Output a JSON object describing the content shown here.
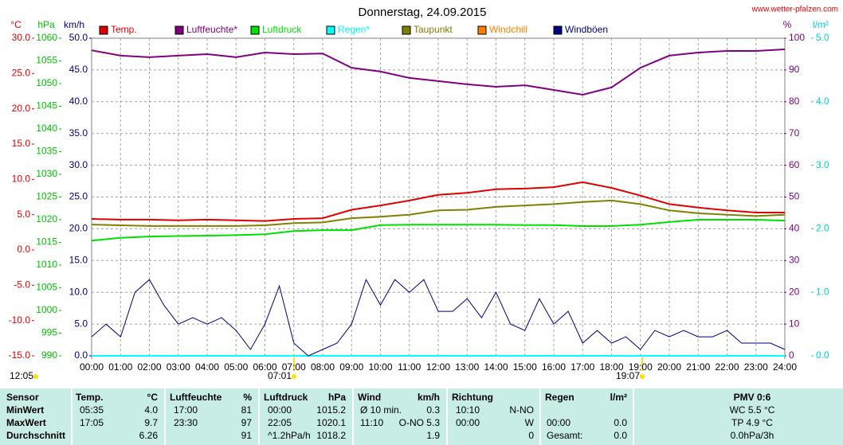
{
  "chart_data": {
    "type": "line",
    "title": "Donnerstag, 24.09.2015",
    "source": "www.wetter-pfalzen.com",
    "annotations": {
      "updated": "12:05",
      "sunrise": "07:01",
      "sunset": "19:07"
    },
    "xlim": [
      0,
      24
    ],
    "xticks": [
      {
        "value": 0,
        "label": "00:00"
      },
      {
        "value": 1,
        "label": "01:00"
      },
      {
        "value": 2,
        "label": "02:00"
      },
      {
        "value": 3,
        "label": "03:00"
      },
      {
        "value": 4,
        "label": "04:00"
      },
      {
        "value": 5,
        "label": "05:00"
      },
      {
        "value": 6,
        "label": "06:00"
      },
      {
        "value": 7,
        "label": "07:00"
      },
      {
        "value": 8,
        "label": "08:00"
      },
      {
        "value": 9,
        "label": "09:00"
      },
      {
        "value": 10,
        "label": "10:00"
      },
      {
        "value": 11,
        "label": "11:00"
      },
      {
        "value": 12,
        "label": "12:00"
      },
      {
        "value": 13,
        "label": "13:00"
      },
      {
        "value": 14,
        "label": "14:00"
      },
      {
        "value": 15,
        "label": "15:00"
      },
      {
        "value": 16,
        "label": "16:00"
      },
      {
        "value": 17,
        "label": "17:00"
      },
      {
        "value": 18,
        "label": "18:00"
      },
      {
        "value": 19,
        "label": "19:00"
      },
      {
        "value": 20,
        "label": "20:00"
      },
      {
        "value": 21,
        "label": "21:00"
      },
      {
        "value": 22,
        "label": "22:00"
      },
      {
        "value": 23,
        "label": "23:00"
      },
      {
        "value": 24,
        "label": "24:00"
      }
    ],
    "grid": true,
    "axes": {
      "temp": {
        "label": "°C",
        "color": "#e00000",
        "lim": [
          -15,
          30
        ],
        "ticks": [
          {
            "value": -15,
            "label": "-15.0"
          },
          {
            "value": -10,
            "label": "-10.0"
          },
          {
            "value": -5,
            "label": "-5.0"
          },
          {
            "value": 0,
            "label": "0.0"
          },
          {
            "value": 5,
            "label": "5.0"
          },
          {
            "value": 10,
            "label": "10.0"
          },
          {
            "value": 15,
            "label": "15.0"
          },
          {
            "value": 20,
            "label": "20.0"
          },
          {
            "value": 25,
            "label": "25.0"
          },
          {
            "value": 30,
            "label": "30.0"
          }
        ]
      },
      "pressure": {
        "label": "hPa",
        "color": "#00c000",
        "lim": [
          990,
          1060
        ],
        "ticks": [
          990,
          995,
          1000,
          1005,
          1010,
          1015,
          1020,
          1025,
          1030,
          1035,
          1040,
          1045,
          1050,
          1055,
          1060
        ]
      },
      "wind": {
        "label": "km/h",
        "color": "#000080",
        "lim": [
          0,
          50
        ],
        "ticks": [
          {
            "value": 0,
            "label": "0.0"
          },
          {
            "value": 5,
            "label": "5.0"
          },
          {
            "value": 10,
            "label": "10.0"
          },
          {
            "value": 15,
            "label": "15.0"
          },
          {
            "value": 20,
            "label": "20.0"
          },
          {
            "value": 25,
            "label": "25.0"
          },
          {
            "value": 30,
            "label": "30.0"
          },
          {
            "value": 35,
            "label": "35.0"
          },
          {
            "value": 40,
            "label": "40.0"
          },
          {
            "value": 45,
            "label": "45.0"
          },
          {
            "value": 50,
            "label": "50.0"
          }
        ]
      },
      "humidity": {
        "label": "%",
        "color": "#800080",
        "lim": [
          0,
          100
        ],
        "ticks": [
          0,
          10,
          20,
          30,
          40,
          50,
          60,
          70,
          80,
          90,
          100
        ]
      },
      "rain": {
        "label": "l/m²",
        "color": "#00d0d0",
        "lim": [
          0,
          5
        ],
        "ticks": [
          {
            "value": 0,
            "label": "0.0"
          },
          {
            "value": 1,
            "label": "1.0"
          },
          {
            "value": 2,
            "label": "2.0"
          },
          {
            "value": 3,
            "label": "3.0"
          },
          {
            "value": 4,
            "label": "4.0"
          },
          {
            "value": 5,
            "label": "5.0"
          }
        ]
      }
    },
    "series": [
      {
        "name": "Temp.",
        "color": "#e00000",
        "axis": "temp",
        "x": [
          0,
          1,
          2,
          3,
          4,
          5,
          6,
          7,
          8,
          9,
          10,
          11,
          12,
          13,
          14,
          15,
          16,
          17,
          18,
          19,
          20,
          21,
          22,
          23,
          24
        ],
        "values": [
          4.4,
          4.3,
          4.3,
          4.2,
          4.3,
          4.2,
          4.1,
          4.4,
          4.5,
          5.7,
          6.3,
          7.0,
          7.8,
          8.1,
          8.6,
          8.7,
          8.9,
          9.6,
          8.8,
          7.7,
          6.5,
          6.0,
          5.6,
          5.3,
          5.3
        ]
      },
      {
        "name": "Luftfeuchte*",
        "color": "#800080",
        "axis": "humidity",
        "x": [
          0,
          1,
          2,
          3,
          4,
          5,
          6,
          7,
          8,
          9,
          10,
          11,
          12,
          13,
          14,
          15,
          16,
          17,
          18,
          19,
          20,
          21,
          22,
          23,
          24
        ],
        "values": [
          96.2,
          94.5,
          94,
          94.5,
          95,
          94,
          95.5,
          95,
          95.2,
          90.7,
          89.5,
          87.5,
          86.5,
          85.5,
          84.7,
          85.2,
          83.7,
          82.2,
          84.5,
          90.7,
          94.5,
          95.5,
          96,
          96,
          96.5
        ]
      },
      {
        "name": "Luftdruck",
        "color": "#00e000",
        "axis": "pressure",
        "x": [
          0,
          1,
          2,
          3,
          4,
          5,
          6,
          7,
          8,
          9,
          10,
          11,
          12,
          13,
          14,
          15,
          16,
          17,
          18,
          19,
          20,
          21,
          22,
          23,
          24
        ],
        "values": [
          1015.4,
          1016,
          1016.3,
          1016.4,
          1016.5,
          1016.6,
          1016.8,
          1017.5,
          1017.7,
          1017.7,
          1018.8,
          1018.9,
          1018.9,
          1018.9,
          1018.9,
          1018.8,
          1018.8,
          1018.6,
          1018.6,
          1018.9,
          1019.5,
          1020,
          1020,
          1020,
          1019.8
        ]
      },
      {
        "name": "Regen*",
        "color": "#00ffff",
        "axis": "rain",
        "x": [
          0,
          1,
          2,
          3,
          4,
          5,
          6,
          7,
          8,
          9,
          10,
          11,
          12,
          13,
          14,
          15,
          16,
          17,
          18,
          19,
          20,
          21,
          22,
          23,
          24
        ],
        "values": [
          0,
          0,
          0,
          0,
          0,
          0,
          0,
          0,
          0,
          0,
          0,
          0,
          0,
          0,
          0,
          0,
          0,
          0,
          0,
          0,
          0,
          0,
          0,
          0,
          0
        ]
      },
      {
        "name": "Taupunkt",
        "color": "#808000",
        "axis": "temp",
        "x": [
          0,
          1,
          2,
          3,
          4,
          5,
          6,
          7,
          8,
          9,
          10,
          11,
          12,
          13,
          14,
          15,
          16,
          17,
          18,
          19,
          20,
          21,
          22,
          23,
          24
        ],
        "values": [
          3.6,
          3.5,
          3.4,
          3.4,
          3.4,
          3.4,
          3.5,
          3.8,
          3.9,
          4.5,
          4.7,
          5.0,
          5.6,
          5.7,
          6.1,
          6.3,
          6.5,
          6.8,
          7.0,
          6.5,
          5.6,
          5.2,
          5.0,
          4.8,
          5.0
        ]
      },
      {
        "name": "Windchill",
        "color": "#ff8000",
        "axis": "temp",
        "x": [
          0,
          1,
          2,
          3,
          4,
          5,
          6,
          7,
          8,
          9,
          10,
          11,
          12,
          13,
          14,
          15,
          16,
          17,
          18,
          19,
          20,
          21,
          22,
          23,
          24
        ],
        "values": [
          null,
          null,
          null,
          null,
          null,
          null,
          null,
          null,
          null,
          null,
          null,
          null,
          null,
          null,
          null,
          null,
          null,
          null,
          null,
          null,
          null,
          null,
          null,
          null,
          null
        ]
      },
      {
        "name": "Windböen",
        "color": "#000080",
        "axis": "wind",
        "x": [
          0,
          0.5,
          1,
          1.5,
          2,
          2.5,
          3,
          3.5,
          4,
          4.5,
          5,
          5.5,
          6,
          6.5,
          7,
          7.5,
          8,
          8.5,
          9,
          9.5,
          10,
          10.5,
          11,
          11.5,
          12,
          12.5,
          13,
          13.5,
          14,
          14.5,
          15,
          15.5,
          16,
          16.5,
          17,
          17.5,
          18,
          18.5,
          19,
          19.5,
          20,
          20.5,
          21,
          21.5,
          22,
          22.5,
          23,
          23.5,
          24
        ],
        "values": [
          3,
          5,
          3,
          10,
          12,
          8,
          5,
          6,
          5,
          6,
          4,
          1,
          5,
          11,
          2,
          0,
          1,
          2,
          5,
          12,
          8,
          12,
          10,
          12,
          7,
          7,
          9,
          6,
          10,
          5,
          4,
          9,
          5,
          7,
          2,
          4,
          2,
          3,
          1,
          4,
          3,
          4,
          3,
          3,
          4,
          2,
          2,
          2,
          1
        ]
      }
    ]
  },
  "table": {
    "header": {
      "sensor": "Sensor",
      "temp_head": "Temp.",
      "temp_unit": "°C",
      "hum_head": "Luftfeuchte",
      "hum_unit": "%",
      "press_head": "Luftdruck",
      "press_unit": "hPa",
      "wind_head": "Wind",
      "wind_unit": "km/h",
      "dir_head": "Richtung",
      "rain_head": "Regen",
      "rain_unit": "l/m²",
      "pmv": "PMV 0:6"
    },
    "rows": [
      {
        "label": "MinWert",
        "temp_time": "05:35",
        "temp": "4.0",
        "hum_time": "17:00",
        "hum": "81",
        "press_time": "00:00",
        "press": "1015.2",
        "wind_time": "Ø 10 min.",
        "wind": "0.3",
        "dir_time": "10:10",
        "dir": "N-NO",
        "pmv": "WC 5.5 °C"
      },
      {
        "label": "MaxWert",
        "temp_time": "17:05",
        "temp": "9.7",
        "hum_time": "23:30",
        "hum": "97",
        "press_time": "22:05",
        "press": "1020.1",
        "wind_time": "11:10",
        "wind": "O-NO 5.3",
        "dir_time": "00:00",
        "dir": "W",
        "rain_time": "00:00",
        "rain": "0.0",
        "pmv": "TP 4.9 °C"
      },
      {
        "label": "Durchschnitt",
        "temp": "6.26",
        "hum": "91",
        "press_time": "^1.2hPa/h",
        "press": "1018.2",
        "wind": "1.9",
        "dir": "0",
        "rain_time": "Gesamt:",
        "rain": "0.0",
        "pmv": "0.0hPa/3h"
      }
    ]
  }
}
